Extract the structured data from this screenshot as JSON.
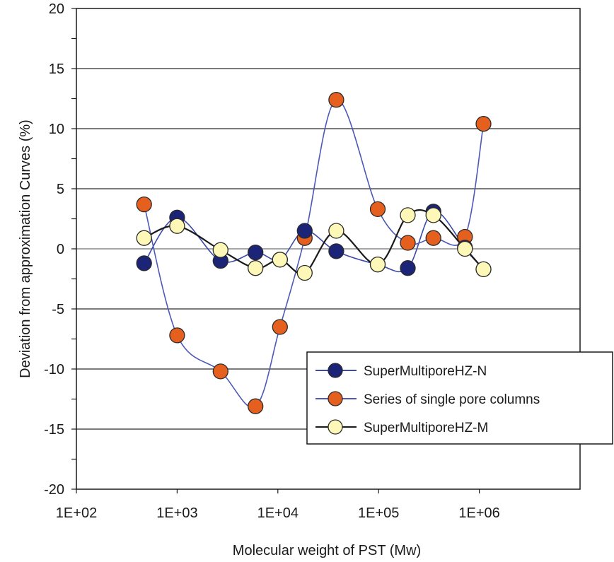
{
  "chart_data": {
    "type": "line",
    "title": "",
    "xlabel": "Molecular weight of PST (Mw)",
    "ylabel": "Deviation from approximation Curves (%)",
    "x_scale": "log",
    "xlim": [
      100,
      10000000
    ],
    "ylim": [
      -20,
      20
    ],
    "x_tick_labels": [
      "1E+02",
      "1E+03",
      "1E+04",
      "1E+05",
      "1E+06"
    ],
    "y_tick_labels": [
      "20",
      "15",
      "10",
      "5",
      "0",
      "-5",
      "-10",
      "-15",
      "-20"
    ],
    "grid": "horizontal major gridlines",
    "legend_position": "bottom-right",
    "series": [
      {
        "name": "SuperMultiporeHZ-N",
        "marker_color": "#1c2478",
        "line_color": "#3c4aa8",
        "points": [
          [
            470,
            -1.2
          ],
          [
            1000,
            2.6
          ],
          [
            2700,
            -1.0
          ],
          [
            6000,
            -0.3
          ],
          [
            10500,
            -0.9
          ],
          [
            18500,
            1.5
          ],
          [
            38000,
            -0.2
          ],
          [
            98000,
            -1.3
          ],
          [
            195000,
            -1.6
          ],
          [
            350000,
            3.1
          ],
          [
            720000,
            0.1
          ],
          [
            1100000,
            -1.7
          ]
        ]
      },
      {
        "name": "Series of single pore columns",
        "marker_color": "#e5601e",
        "line_color": "#4e59b6",
        "points": [
          [
            470,
            3.7
          ],
          [
            1000,
            -7.2
          ],
          [
            2700,
            -10.2
          ],
          [
            6000,
            -13.1
          ],
          [
            10500,
            -6.5
          ],
          [
            18500,
            0.9
          ],
          [
            38000,
            12.4
          ],
          [
            98000,
            3.3
          ],
          [
            195000,
            0.5
          ],
          [
            350000,
            0.9
          ],
          [
            720000,
            1.0
          ],
          [
            1100000,
            10.4
          ]
        ]
      },
      {
        "name": "SuperMultiporeHZ-M",
        "marker_color": "#fdf8b8",
        "line_color": "#1a1a1a",
        "points": [
          [
            470,
            0.9
          ],
          [
            1000,
            1.9
          ],
          [
            2700,
            -0.1
          ],
          [
            6000,
            -1.6
          ],
          [
            10500,
            -0.9
          ],
          [
            18500,
            -2.0
          ],
          [
            38000,
            1.5
          ],
          [
            98000,
            -1.3
          ],
          [
            195000,
            2.8
          ],
          [
            350000,
            2.8
          ],
          [
            720000,
            0.0
          ],
          [
            1100000,
            -1.7
          ]
        ]
      }
    ]
  }
}
